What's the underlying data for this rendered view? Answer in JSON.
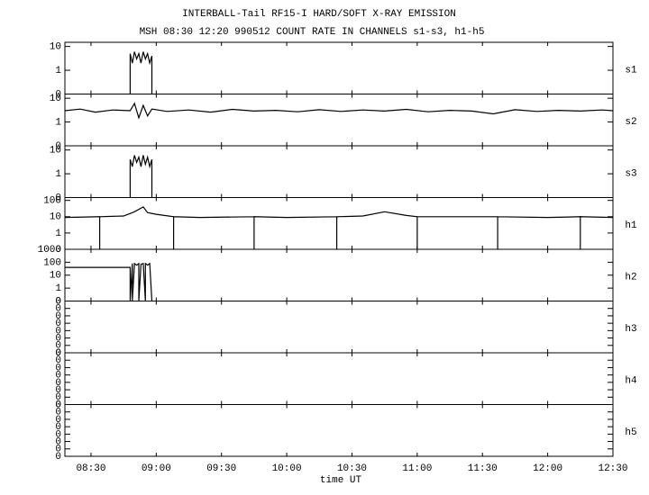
{
  "title": "INTERBALL-Tail RF15-I HARD/SOFT X-RAY EMISSION",
  "subtitle": "MSH 08:30 12:20 990512  COUNT RATE IN CHANNELS s1-s3, h1-h5",
  "xlabel": "time UT",
  "xlim": [
    "08:18",
    "12:30"
  ],
  "xticks": [
    "08:30",
    "09:00",
    "09:30",
    "10:00",
    "10:30",
    "11:00",
    "11:30",
    "12:00",
    "12:30"
  ],
  "chart_data": [
    {
      "type": "line",
      "name": "s1",
      "log": true,
      "color": "#000000",
      "ylim": [
        0.1,
        15
      ],
      "yticks": [
        10,
        1,
        {
          "value": 0.1,
          "label": "0"
        }
      ],
      "x": [
        "08:48",
        "08:48",
        "08:49",
        "08:50",
        "08:51",
        "08:52",
        "08:53",
        "08:54",
        "08:55",
        "08:56",
        "08:57",
        "08:58",
        "08:58"
      ],
      "values": [
        0.1,
        5,
        2,
        6,
        3,
        5,
        2,
        6,
        3,
        5,
        2,
        4,
        0.1
      ]
    },
    {
      "type": "line",
      "name": "s2",
      "log": true,
      "color": "#000000",
      "ylim": [
        0.1,
        15
      ],
      "yticks": [
        10,
        1,
        {
          "value": 0.1,
          "label": "0"
        }
      ],
      "x": [
        "08:18",
        "08:25",
        "08:32",
        "08:40",
        "08:48",
        "08:50",
        "08:52",
        "08:54",
        "08:56",
        "08:58",
        "09:05",
        "09:15",
        "09:25",
        "09:35",
        "09:45",
        "09:55",
        "10:05",
        "10:15",
        "10:25",
        "10:35",
        "10:45",
        "10:55",
        "11:05",
        "11:15",
        "11:25",
        "11:35",
        "11:45",
        "11:55",
        "12:05",
        "12:15",
        "12:25",
        "12:30"
      ],
      "values": [
        3,
        3.5,
        2.6,
        3.2,
        3,
        6,
        1.5,
        5,
        1.8,
        3.5,
        2.8,
        3.2,
        2.6,
        3.4,
        2.9,
        3.1,
        2.7,
        3.3,
        2.8,
        3.2,
        2.9,
        3.4,
        2.7,
        3.1,
        2.9,
        2.2,
        3.3,
        2.8,
        3.1,
        2.9,
        3.2,
        3
      ]
    },
    {
      "type": "line",
      "name": "s3",
      "log": true,
      "color": "#000000",
      "ylim": [
        0.1,
        15
      ],
      "yticks": [
        10,
        1,
        {
          "value": 0.1,
          "label": "0"
        }
      ],
      "x": [
        "08:48",
        "08:48",
        "08:49",
        "08:50",
        "08:51",
        "08:52",
        "08:53",
        "08:54",
        "08:55",
        "08:56",
        "08:57",
        "08:58",
        "08:58"
      ],
      "values": [
        0.1,
        4,
        2,
        6,
        3,
        5,
        2,
        6,
        2.5,
        5,
        2,
        4,
        0.1
      ]
    },
    {
      "type": "line",
      "name": "h1",
      "log": true,
      "color": "#000000",
      "ylim": [
        0.1,
        150
      ],
      "yticks": [
        100,
        10,
        1,
        {
          "value": 0.1,
          "label": "0"
        }
      ],
      "x": [
        "08:18",
        "08:34",
        "08:34",
        "08:34",
        "08:45",
        "08:50",
        "08:54",
        "08:56",
        "09:00",
        "09:08",
        "09:08",
        "09:08",
        "09:20",
        "09:45",
        "09:45",
        "09:45",
        "10:00",
        "10:23",
        "10:23",
        "10:23",
        "10:35",
        "10:45",
        "10:55",
        "11:00",
        "11:00",
        "11:00",
        "11:20",
        "11:37",
        "11:37",
        "11:37",
        "12:00",
        "12:15",
        "12:15",
        "12:15",
        "12:30"
      ],
      "values": [
        9,
        10,
        0.1,
        10,
        11,
        20,
        40,
        18,
        14,
        10,
        0.1,
        10,
        9,
        10,
        0.1,
        10,
        9,
        10,
        0.1,
        10,
        11,
        20,
        12,
        10,
        0.1,
        10,
        10,
        10,
        0.1,
        10,
        9,
        10,
        0.1,
        10,
        9
      ]
    },
    {
      "type": "line",
      "name": "h2",
      "log": true,
      "color": "#000000",
      "ylim": [
        0.1,
        1000
      ],
      "yticks": [
        1000,
        100,
        10,
        1,
        {
          "value": 0.1,
          "label": "0"
        }
      ],
      "x": [
        "08:18",
        "08:48",
        "08:48",
        "08:49",
        "08:49",
        "08:50",
        "08:51",
        "08:52",
        "08:52",
        "08:53",
        "08:54",
        "08:55",
        "08:55",
        "08:56",
        "08:57",
        "08:58"
      ],
      "values": [
        40,
        40,
        0.1,
        80,
        0.1,
        80,
        60,
        80,
        0.1,
        70,
        80,
        0.1,
        80,
        60,
        80,
        0.1
      ]
    },
    {
      "type": "line",
      "name": "h3",
      "log": true,
      "ylim": [
        1e-08,
        0.1
      ],
      "yticks": [
        {
          "value": 0.1,
          "label": "0"
        },
        {
          "value": 0.01,
          "label": "0"
        },
        {
          "value": 0.001,
          "label": "0"
        },
        {
          "value": 0.0001,
          "label": "0"
        },
        {
          "value": 1e-05,
          "label": "0"
        },
        {
          "value": 1e-06,
          "label": "0"
        },
        {
          "value": 1e-07,
          "label": "0"
        },
        {
          "value": 1e-08,
          "label": "0"
        }
      ]
    },
    {
      "type": "line",
      "name": "h4",
      "log": true,
      "ylim": [
        1e-08,
        0.1
      ],
      "yticks": [
        {
          "value": 0.1,
          "label": "0"
        },
        {
          "value": 0.01,
          "label": "0"
        },
        {
          "value": 0.001,
          "label": "0"
        },
        {
          "value": 0.0001,
          "label": "0"
        },
        {
          "value": 1e-05,
          "label": "0"
        },
        {
          "value": 1e-06,
          "label": "0"
        },
        {
          "value": 1e-07,
          "label": "0"
        },
        {
          "value": 1e-08,
          "label": "0"
        }
      ]
    },
    {
      "type": "line",
      "name": "h5",
      "log": true,
      "ylim": [
        1e-08,
        0.1
      ],
      "yticks": [
        {
          "value": 0.1,
          "label": "0"
        },
        {
          "value": 0.01,
          "label": "0"
        },
        {
          "value": 0.001,
          "label": "0"
        },
        {
          "value": 0.0001,
          "label": "0"
        },
        {
          "value": 1e-05,
          "label": "0"
        },
        {
          "value": 1e-06,
          "label": "0"
        },
        {
          "value": 1e-07,
          "label": "0"
        },
        {
          "value": 1e-08,
          "label": "0"
        }
      ]
    }
  ]
}
